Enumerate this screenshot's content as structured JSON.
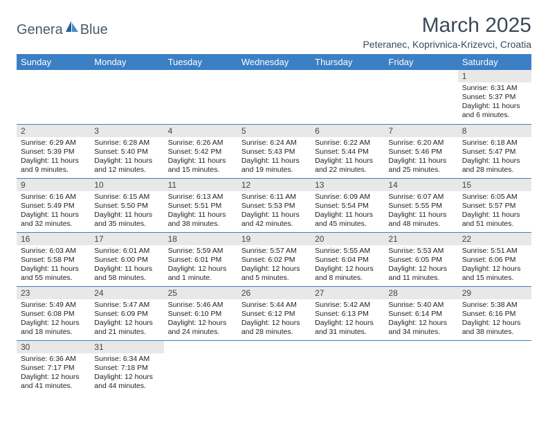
{
  "logo": {
    "text_a": "Genera",
    "text_b": "Blue",
    "sail_dark": "#2b5f8f",
    "sail_light": "#3b8fd4"
  },
  "title": "March 2025",
  "location": "Peteranec, Koprivnica-Krizevci, Croatia",
  "header_bg": "#3b7fc4",
  "daynum_bg": "#e8e8e8",
  "border_color": "#3b7fc4",
  "weekdays": [
    "Sunday",
    "Monday",
    "Tuesday",
    "Wednesday",
    "Thursday",
    "Friday",
    "Saturday"
  ],
  "first_weekday": 6,
  "days": [
    {
      "n": 1,
      "sr": "6:31 AM",
      "ss": "5:37 PM",
      "dl": "11 hours and 6 minutes."
    },
    {
      "n": 2,
      "sr": "6:29 AM",
      "ss": "5:39 PM",
      "dl": "11 hours and 9 minutes."
    },
    {
      "n": 3,
      "sr": "6:28 AM",
      "ss": "5:40 PM",
      "dl": "11 hours and 12 minutes."
    },
    {
      "n": 4,
      "sr": "6:26 AM",
      "ss": "5:42 PM",
      "dl": "11 hours and 15 minutes."
    },
    {
      "n": 5,
      "sr": "6:24 AM",
      "ss": "5:43 PM",
      "dl": "11 hours and 19 minutes."
    },
    {
      "n": 6,
      "sr": "6:22 AM",
      "ss": "5:44 PM",
      "dl": "11 hours and 22 minutes."
    },
    {
      "n": 7,
      "sr": "6:20 AM",
      "ss": "5:46 PM",
      "dl": "11 hours and 25 minutes."
    },
    {
      "n": 8,
      "sr": "6:18 AM",
      "ss": "5:47 PM",
      "dl": "11 hours and 28 minutes."
    },
    {
      "n": 9,
      "sr": "6:16 AM",
      "ss": "5:49 PM",
      "dl": "11 hours and 32 minutes."
    },
    {
      "n": 10,
      "sr": "6:15 AM",
      "ss": "5:50 PM",
      "dl": "11 hours and 35 minutes."
    },
    {
      "n": 11,
      "sr": "6:13 AM",
      "ss": "5:51 PM",
      "dl": "11 hours and 38 minutes."
    },
    {
      "n": 12,
      "sr": "6:11 AM",
      "ss": "5:53 PM",
      "dl": "11 hours and 42 minutes."
    },
    {
      "n": 13,
      "sr": "6:09 AM",
      "ss": "5:54 PM",
      "dl": "11 hours and 45 minutes."
    },
    {
      "n": 14,
      "sr": "6:07 AM",
      "ss": "5:55 PM",
      "dl": "11 hours and 48 minutes."
    },
    {
      "n": 15,
      "sr": "6:05 AM",
      "ss": "5:57 PM",
      "dl": "11 hours and 51 minutes."
    },
    {
      "n": 16,
      "sr": "6:03 AM",
      "ss": "5:58 PM",
      "dl": "11 hours and 55 minutes."
    },
    {
      "n": 17,
      "sr": "6:01 AM",
      "ss": "6:00 PM",
      "dl": "11 hours and 58 minutes."
    },
    {
      "n": 18,
      "sr": "5:59 AM",
      "ss": "6:01 PM",
      "dl": "12 hours and 1 minute."
    },
    {
      "n": 19,
      "sr": "5:57 AM",
      "ss": "6:02 PM",
      "dl": "12 hours and 5 minutes."
    },
    {
      "n": 20,
      "sr": "5:55 AM",
      "ss": "6:04 PM",
      "dl": "12 hours and 8 minutes."
    },
    {
      "n": 21,
      "sr": "5:53 AM",
      "ss": "6:05 PM",
      "dl": "12 hours and 11 minutes."
    },
    {
      "n": 22,
      "sr": "5:51 AM",
      "ss": "6:06 PM",
      "dl": "12 hours and 15 minutes."
    },
    {
      "n": 23,
      "sr": "5:49 AM",
      "ss": "6:08 PM",
      "dl": "12 hours and 18 minutes."
    },
    {
      "n": 24,
      "sr": "5:47 AM",
      "ss": "6:09 PM",
      "dl": "12 hours and 21 minutes."
    },
    {
      "n": 25,
      "sr": "5:46 AM",
      "ss": "6:10 PM",
      "dl": "12 hours and 24 minutes."
    },
    {
      "n": 26,
      "sr": "5:44 AM",
      "ss": "6:12 PM",
      "dl": "12 hours and 28 minutes."
    },
    {
      "n": 27,
      "sr": "5:42 AM",
      "ss": "6:13 PM",
      "dl": "12 hours and 31 minutes."
    },
    {
      "n": 28,
      "sr": "5:40 AM",
      "ss": "6:14 PM",
      "dl": "12 hours and 34 minutes."
    },
    {
      "n": 29,
      "sr": "5:38 AM",
      "ss": "6:16 PM",
      "dl": "12 hours and 38 minutes."
    },
    {
      "n": 30,
      "sr": "6:36 AM",
      "ss": "7:17 PM",
      "dl": "12 hours and 41 minutes."
    },
    {
      "n": 31,
      "sr": "6:34 AM",
      "ss": "7:18 PM",
      "dl": "12 hours and 44 minutes."
    }
  ],
  "labels": {
    "sunrise": "Sunrise:",
    "sunset": "Sunset:",
    "daylight": "Daylight:"
  }
}
